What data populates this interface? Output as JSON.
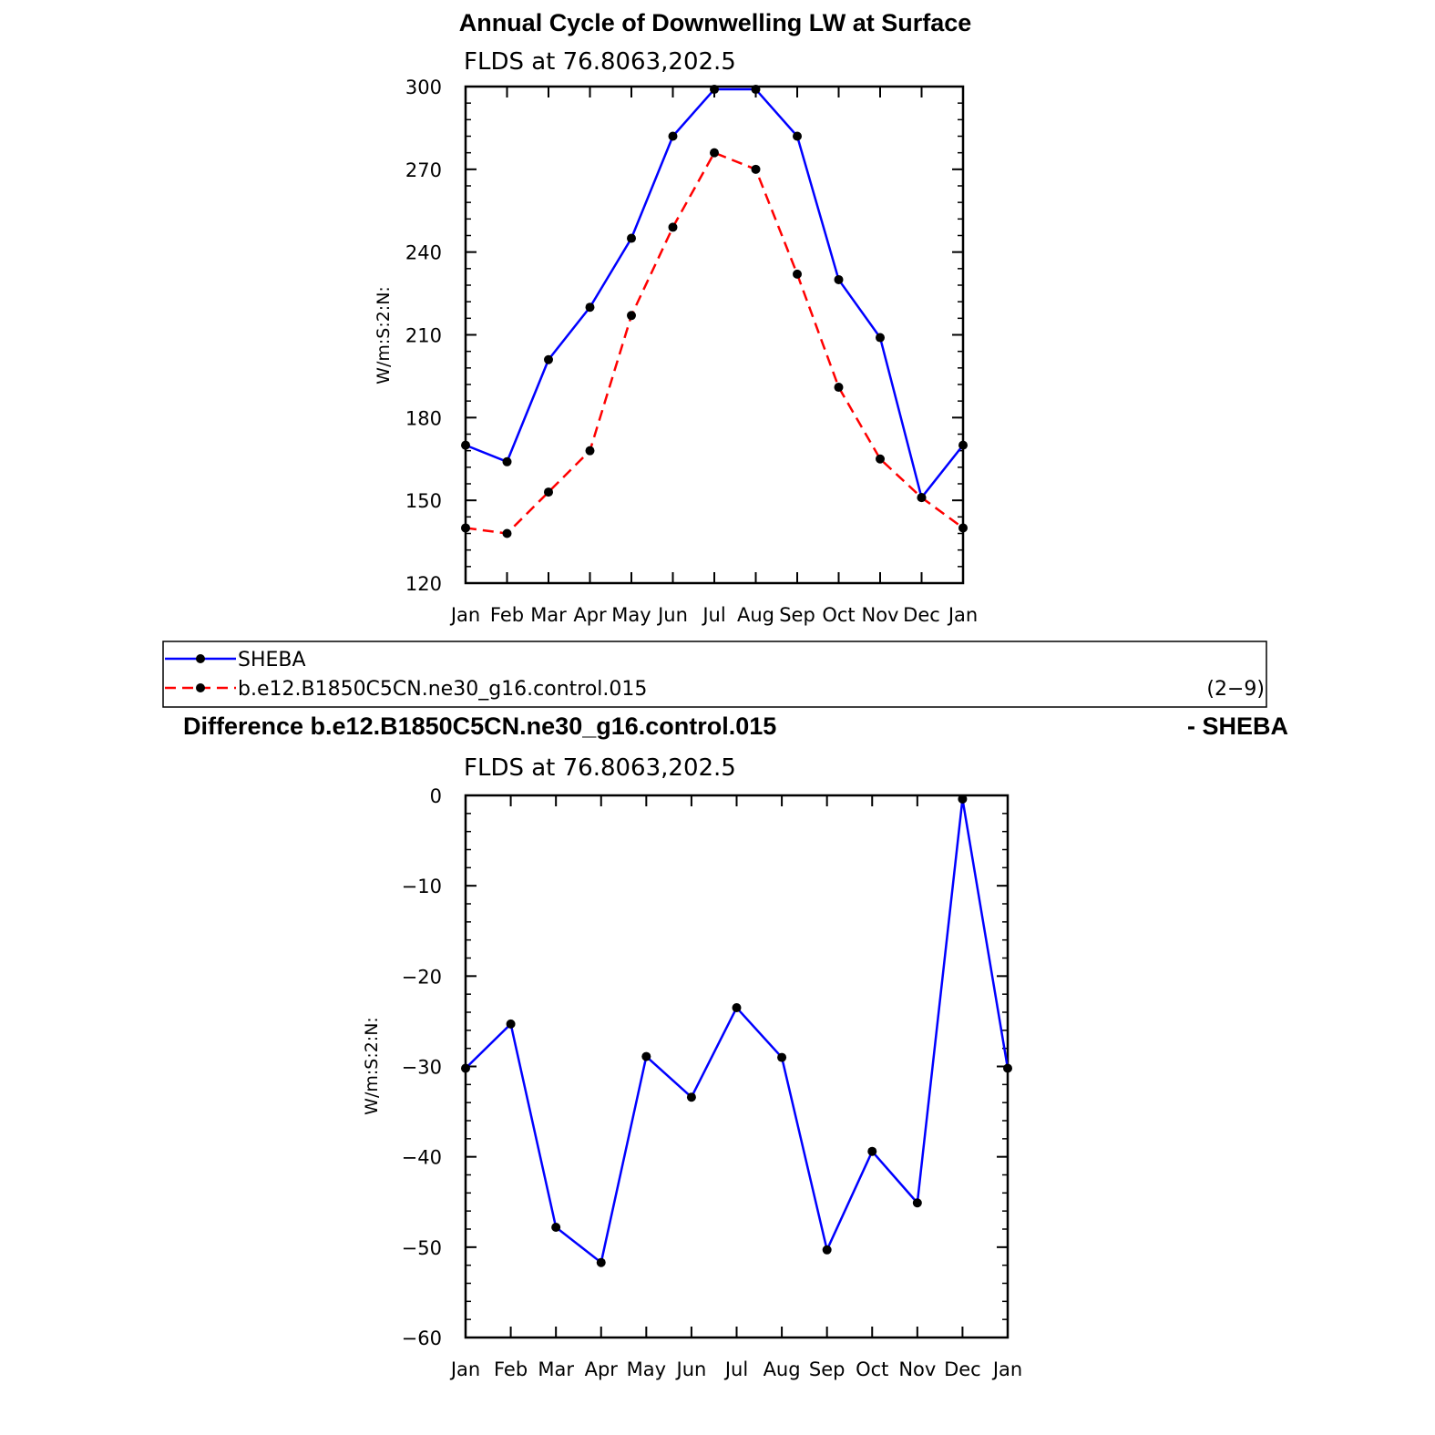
{
  "chart_data": [
    {
      "type": "line",
      "title": "Annual Cycle of Downwelling LW at Surface",
      "subtitle": "FLDS at 76.8063,202.5",
      "ylabel": "W/m:S:2:N:",
      "xlabel": "",
      "categories": [
        "Jan",
        "Feb",
        "Mar",
        "Apr",
        "May",
        "Jun",
        "Jul",
        "Aug",
        "Sep",
        "Oct",
        "Nov",
        "Dec",
        "Jan"
      ],
      "ylim": [
        120,
        300
      ],
      "yticks": [
        120,
        150,
        180,
        210,
        240,
        270,
        300
      ],
      "ytick_labels": [
        "120",
        "150",
        "180",
        "210",
        "240",
        "270",
        "300"
      ],
      "series": [
        {
          "name": "SHEBA",
          "color": "#0000ff",
          "dashed": false,
          "values": [
            170,
            164,
            201,
            220,
            245,
            282,
            299,
            299,
            282,
            230,
            209,
            151,
            170
          ]
        },
        {
          "name": "b.e12.B1850C5CN.ne30_g16.control.015",
          "color": "#ff0000",
          "dashed": true,
          "values": [
            140,
            138,
            153,
            168,
            217,
            249,
            276,
            270,
            232,
            191,
            165,
            151,
            140
          ]
        }
      ],
      "legend": {
        "placement": "below",
        "note": "(2−9)"
      },
      "grid": false
    },
    {
      "type": "line",
      "title": "Difference b.e12.B1850C5CN.ne30_g16.control.015",
      "title_right": "- SHEBA",
      "subtitle": "FLDS at 76.8063,202.5",
      "ylabel": "W/m:S:2:N:",
      "xlabel": "",
      "categories": [
        "Jan",
        "Feb",
        "Mar",
        "Apr",
        "May",
        "Jun",
        "Jul",
        "Aug",
        "Sep",
        "Oct",
        "Nov",
        "Dec",
        "Jan"
      ],
      "ylim": [
        -60,
        0
      ],
      "yticks": [
        -60,
        -50,
        -40,
        -30,
        -20,
        -10,
        0
      ],
      "ytick_labels": [
        "−60",
        "−50",
        "−40",
        "−30",
        "−20",
        "−10",
        "0"
      ],
      "series": [
        {
          "color": "#0000ff",
          "dashed": false,
          "values": [
            -30.2,
            -25.3,
            -47.8,
            -51.7,
            -28.9,
            -33.4,
            -23.5,
            -29.0,
            -50.3,
            -39.4,
            -45.1,
            -0.4,
            -30.2
          ]
        }
      ],
      "grid": false
    }
  ]
}
